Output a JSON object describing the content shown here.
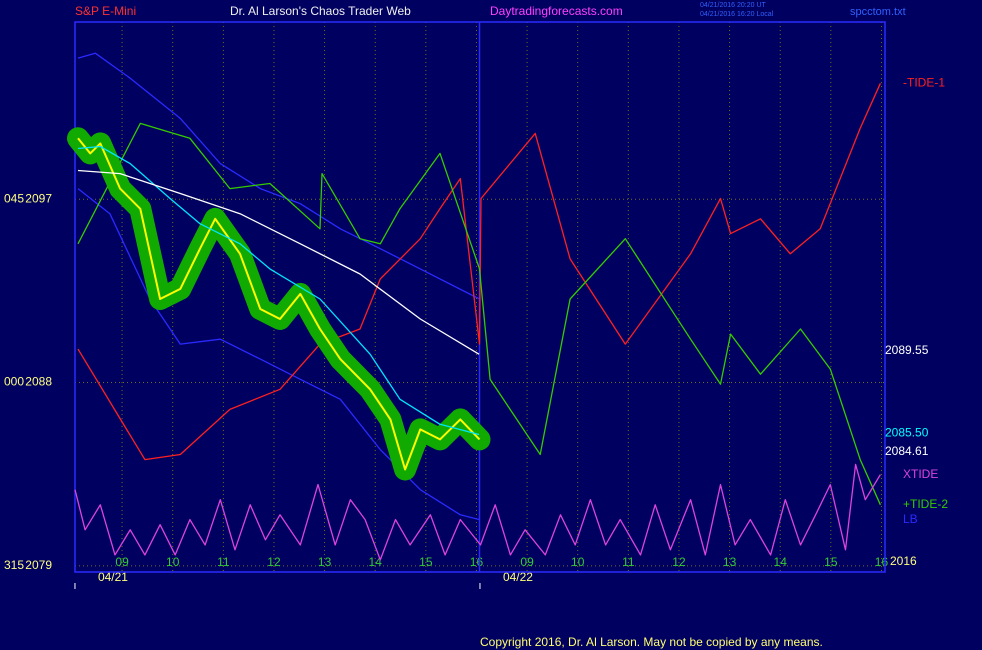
{
  "chart_data": {
    "type": "line",
    "title": "Dr. Al Larson's Chaos Trader Web",
    "instrument": "S&P E-Mini",
    "site": "Daytradingforecasts.com",
    "timestamps": [
      "04/21/2016 20:20 UT",
      "04/21/2016 16:20 Local"
    ],
    "file": "spcctom.txt",
    "copyright": "Copyright 2016, Dr. Al Larson. May not be copied by any means.",
    "ylim": [
      2078.7,
      2105.7
    ],
    "yticks": [
      2079,
      2088,
      2097
    ],
    "angle_labels": [
      "315",
      "000",
      "045"
    ],
    "xlim": [
      -0.93,
      15.07
    ],
    "xticks": [
      {
        "value": 0,
        "label": "09"
      },
      {
        "value": 1,
        "label": "10"
      },
      {
        "value": 2,
        "label": "11"
      },
      {
        "value": 3,
        "label": "12"
      },
      {
        "value": 4,
        "label": "13"
      },
      {
        "value": 5,
        "label": "14"
      },
      {
        "value": 6,
        "label": "15"
      },
      {
        "value": 7,
        "label": "16"
      },
      {
        "value": 8,
        "label": "09"
      },
      {
        "value": 9,
        "label": "10"
      },
      {
        "value": 10,
        "label": "11"
      },
      {
        "value": 11,
        "label": "12"
      },
      {
        "value": 12,
        "label": "13"
      },
      {
        "value": 13,
        "label": "14"
      },
      {
        "value": 14,
        "label": "15"
      },
      {
        "value": 15,
        "label": "16"
      }
    ],
    "date_labels": [
      {
        "value": -0.18,
        "label": "04/21"
      },
      {
        "value": 7.82,
        "label": "04/22"
      }
    ],
    "day_separator": 7.06,
    "grid": true,
    "price_labels": [
      {
        "value": 2089.55,
        "label": "2089.55",
        "color": "#ffffff"
      },
      {
        "value": 2085.5,
        "label": "2085.50",
        "color": "#00ffff"
      },
      {
        "value": 2084.61,
        "label": "2084.61",
        "color": "#ffffff"
      }
    ],
    "year_label": "2016",
    "series": [
      {
        "name": "LB",
        "color": "#2a2aff",
        "x": [
          -0.87,
          -0.24,
          0.55,
          1.15,
          1.94,
          2.73,
          3.52,
          4.31,
          5.1,
          5.89,
          6.68,
          7.06
        ],
        "y": [
          2097.52,
          2096.29,
          2092.1,
          2089.89,
          2090.13,
          2089.15,
          2088.16,
          2087.18,
          2084.71,
          2082.74,
          2081.51,
          2081.27
        ]
      },
      {
        "color": "#2a2aff",
        "x": [
          -0.87,
          -0.53,
          0.16,
          1.15,
          1.94,
          2.73,
          3.52,
          4.31,
          5.1,
          5.89,
          7.06
        ],
        "y": [
          2103.93,
          2104.17,
          2102.94,
          2100.97,
          2098.75,
          2097.52,
          2096.78,
          2095.55,
          2094.57,
          2093.58,
          2092.1
        ]
      },
      {
        "name": "-TIDE-1",
        "color": "#ff2020",
        "x": [
          -0.87,
          0.45,
          1.15,
          2.13,
          3.12,
          3.91,
          4.7,
          5.1,
          5.89,
          6.28,
          6.68,
          7.06,
          7.09,
          8.16,
          8.85,
          9.94,
          11.23,
          11.82,
          12.02,
          12.61,
          13.2,
          13.79,
          14.58,
          14.98
        ],
        "y": [
          2089.64,
          2084.22,
          2084.47,
          2086.68,
          2087.67,
          2089.89,
          2090.63,
          2093.09,
          2095.06,
          2096.54,
          2098.01,
          2089.89,
          2097.03,
          2100.23,
          2094.07,
          2089.89,
          2094.32,
          2097.03,
          2095.31,
          2096.04,
          2094.32,
          2095.55,
          2100.48,
          2102.69
        ]
      },
      {
        "name": "+TIDE-2",
        "color": "#33cc00",
        "x": [
          -0.87,
          0.36,
          1.34,
          2.13,
          2.92,
          3.91,
          3.95,
          4.7,
          5.1,
          5.49,
          6.28,
          7.06,
          7.27,
          8.26,
          8.85,
          9.94,
          11.23,
          11.82,
          12.02,
          12.61,
          13.4,
          13.99,
          14.58,
          14.98
        ],
        "y": [
          2094.81,
          2100.72,
          2099.99,
          2097.52,
          2097.77,
          2095.55,
          2098.26,
          2095.06,
          2094.81,
          2096.54,
          2099.25,
          2093.58,
          2088.16,
          2084.47,
          2092.1,
          2095.06,
          2090.13,
          2087.92,
          2090.38,
          2088.41,
          2090.63,
          2088.66,
          2084.22,
          2082.0
        ]
      },
      {
        "name": "XTIDE",
        "color": "#dd44dd",
        "x": [
          -0.93,
          -0.73,
          -0.43,
          -0.14,
          0.16,
          0.45,
          0.75,
          1.05,
          1.34,
          1.64,
          1.94,
          2.23,
          2.53,
          2.83,
          3.12,
          3.52,
          3.87,
          4.21,
          4.51,
          4.8,
          5.1,
          5.4,
          5.69,
          6.09,
          6.38,
          6.68,
          7.08,
          7.37,
          7.67,
          7.96,
          8.36,
          8.66,
          8.95,
          9.25,
          9.55,
          9.84,
          10.24,
          10.53,
          10.83,
          11.23,
          11.52,
          11.82,
          12.11,
          12.41,
          12.81,
          13.1,
          13.4,
          13.7,
          13.99,
          14.29,
          14.49,
          14.68,
          14.98
        ],
        "y": [
          2082.74,
          2080.77,
          2082.0,
          2079.54,
          2080.77,
          2079.54,
          2081.02,
          2079.54,
          2081.27,
          2080.03,
          2082.25,
          2079.79,
          2082.0,
          2080.28,
          2081.51,
          2080.03,
          2082.99,
          2080.03,
          2082.25,
          2081.27,
          2079.3,
          2081.27,
          2080.03,
          2081.51,
          2079.54,
          2081.27,
          2080.03,
          2082.0,
          2079.54,
          2080.77,
          2079.54,
          2081.51,
          2080.03,
          2082.25,
          2080.03,
          2081.27,
          2079.54,
          2082.0,
          2079.79,
          2082.25,
          2079.54,
          2082.99,
          2080.03,
          2081.27,
          2079.54,
          2082.25,
          2080.03,
          2081.51,
          2082.99,
          2079.79,
          2083.98,
          2082.25,
          2083.48
        ]
      },
      {
        "color": "#ffff00",
        "halo": "#11aa00",
        "x": [
          -0.87,
          -0.63,
          -0.43,
          -0.04,
          0.36,
          0.75,
          1.15,
          1.54,
          1.84,
          2.33,
          2.73,
          3.12,
          3.52,
          3.91,
          4.31,
          4.9,
          5.3,
          5.59,
          5.89,
          6.28,
          6.68,
          7.06
        ],
        "y": [
          2099.99,
          2099.25,
          2099.74,
          2097.52,
          2096.53,
          2092.1,
          2092.6,
          2094.57,
          2096.04,
          2094.32,
          2091.61,
          2091.12,
          2092.35,
          2090.63,
          2089.15,
          2087.67,
          2086.19,
          2083.73,
          2085.7,
          2085.21,
          2086.19,
          2085.21
        ]
      },
      {
        "color": "#00e5ff",
        "x": [
          -0.87,
          -0.43,
          0.16,
          0.95,
          1.54,
          2.33,
          2.92,
          3.91,
          4.9,
          5.49,
          6.28,
          7.05
        ],
        "y": [
          2099.49,
          2099.59,
          2098.75,
          2097.03,
          2095.8,
          2094.81,
          2093.58,
          2092.1,
          2089.39,
          2087.18,
          2085.95,
          2085.45
        ]
      },
      {
        "color": "#ffffff",
        "x": [
          -0.87,
          -0.04,
          1.15,
          2.33,
          3.52,
          4.7,
          5.89,
          7.05
        ],
        "y": [
          2098.41,
          2098.26,
          2097.28,
          2096.29,
          2094.81,
          2093.33,
          2091.12,
          2089.39
        ]
      }
    ]
  }
}
